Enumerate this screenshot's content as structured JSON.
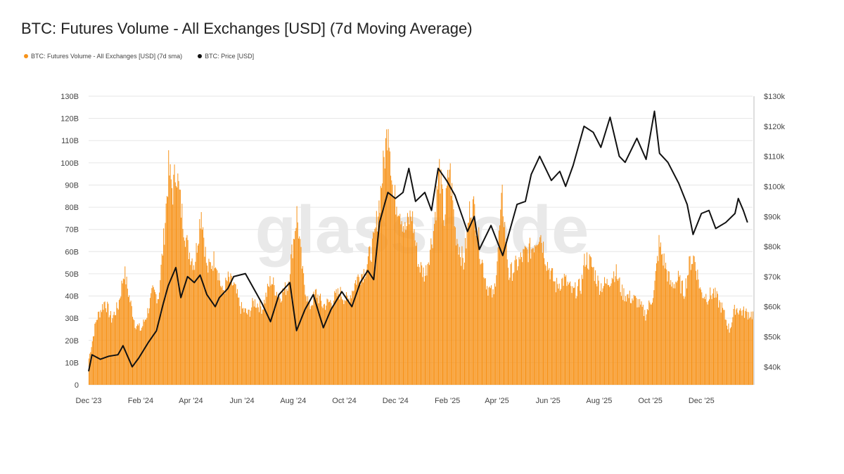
{
  "chart_data": {
    "type": "bar",
    "title": "BTC: Futures Volume - All Exchanges [USD] (7d Moving Average)",
    "watermark": "glassnode",
    "legend_placement": "top-left",
    "colors": {
      "volume": "#f7931a",
      "price": "#111111",
      "grid": "#e6e6e6"
    },
    "x_tick_labels": [
      "Dec '23",
      "Feb '24",
      "Apr '24",
      "Jun '24",
      "Aug '24",
      "Oct '24",
      "Dec '24",
      "Feb '25",
      "Apr '25",
      "Jun '25",
      "Aug '25",
      "Oct '25",
      "Dec '25"
    ],
    "x_range": [
      "2023-12-01",
      "2026-01-31"
    ],
    "y_left": {
      "ticks": [
        "0",
        "10B",
        "20B",
        "30B",
        "40B",
        "50B",
        "60B",
        "70B",
        "80B",
        "90B",
        "100B",
        "110B",
        "120B",
        "130B"
      ],
      "ylim": [
        0,
        130
      ]
    },
    "y_right": {
      "ticks": [
        "$40k",
        "$50k",
        "$60k",
        "$70k",
        "$80k",
        "$90k",
        "$100k",
        "$110k",
        "$120k",
        "$130k"
      ],
      "ylim": [
        34000,
        130000
      ]
    },
    "grid": true,
    "series": [
      {
        "name": "BTC: Futures Volume - All Exchanges [USD] (7d sma)",
        "kind": "bar",
        "unit": "B USD",
        "points": [
          [
            "2023-12-01",
            12
          ],
          [
            "2023-12-10",
            30
          ],
          [
            "2023-12-20",
            38
          ],
          [
            "2023-12-28",
            30
          ],
          [
            "2024-01-05",
            36
          ],
          [
            "2024-01-12",
            52
          ],
          [
            "2024-01-18",
            40
          ],
          [
            "2024-01-25",
            28
          ],
          [
            "2024-02-01",
            25
          ],
          [
            "2024-02-08",
            32
          ],
          [
            "2024-02-15",
            42
          ],
          [
            "2024-02-22",
            40
          ],
          [
            "2024-02-29",
            70
          ],
          [
            "2024-03-05",
            98
          ],
          [
            "2024-03-10",
            88
          ],
          [
            "2024-03-14",
            99
          ],
          [
            "2024-03-20",
            80
          ],
          [
            "2024-03-28",
            62
          ],
          [
            "2024-04-05",
            55
          ],
          [
            "2024-04-13",
            80
          ],
          [
            "2024-04-20",
            52
          ],
          [
            "2024-04-30",
            58
          ],
          [
            "2024-05-08",
            42
          ],
          [
            "2024-05-15",
            48
          ],
          [
            "2024-05-22",
            45
          ],
          [
            "2024-05-30",
            35
          ],
          [
            "2024-06-08",
            32
          ],
          [
            "2024-06-15",
            38
          ],
          [
            "2024-06-25",
            35
          ],
          [
            "2024-07-05",
            48
          ],
          [
            "2024-07-15",
            40
          ],
          [
            "2024-07-25",
            45
          ],
          [
            "2024-08-05",
            78
          ],
          [
            "2024-08-12",
            50
          ],
          [
            "2024-08-20",
            35
          ],
          [
            "2024-08-28",
            42
          ],
          [
            "2024-09-05",
            36
          ],
          [
            "2024-09-15",
            38
          ],
          [
            "2024-09-25",
            42
          ],
          [
            "2024-10-05",
            38
          ],
          [
            "2024-10-15",
            48
          ],
          [
            "2024-10-25",
            52
          ],
          [
            "2024-11-05",
            65
          ],
          [
            "2024-11-12",
            85
          ],
          [
            "2024-11-20",
            112
          ],
          [
            "2024-11-22",
            122
          ],
          [
            "2024-11-28",
            85
          ],
          [
            "2024-12-05",
            82
          ],
          [
            "2024-12-12",
            70
          ],
          [
            "2024-12-20",
            78
          ],
          [
            "2024-12-28",
            55
          ],
          [
            "2025-01-05",
            50
          ],
          [
            "2025-01-15",
            70
          ],
          [
            "2025-01-22",
            98
          ],
          [
            "2025-01-28",
            75
          ],
          [
            "2025-02-03",
            100
          ],
          [
            "2025-02-10",
            70
          ],
          [
            "2025-02-20",
            55
          ],
          [
            "2025-02-28",
            82
          ],
          [
            "2025-03-05",
            80
          ],
          [
            "2025-03-12",
            60
          ],
          [
            "2025-03-20",
            45
          ],
          [
            "2025-03-28",
            40
          ],
          [
            "2025-04-07",
            85
          ],
          [
            "2025-04-15",
            50
          ],
          [
            "2025-04-25",
            55
          ],
          [
            "2025-05-05",
            60
          ],
          [
            "2025-05-12",
            62
          ],
          [
            "2025-05-22",
            70
          ],
          [
            "2025-05-30",
            56
          ],
          [
            "2025-06-10",
            45
          ],
          [
            "2025-06-20",
            48
          ],
          [
            "2025-06-30",
            42
          ],
          [
            "2025-07-10",
            45
          ],
          [
            "2025-07-15",
            58
          ],
          [
            "2025-07-22",
            55
          ],
          [
            "2025-08-01",
            45
          ],
          [
            "2025-08-10",
            46
          ],
          [
            "2025-08-20",
            52
          ],
          [
            "2025-08-28",
            42
          ],
          [
            "2025-09-05",
            40
          ],
          [
            "2025-09-15",
            38
          ],
          [
            "2025-09-25",
            32
          ],
          [
            "2025-10-05",
            42
          ],
          [
            "2025-10-11",
            64
          ],
          [
            "2025-10-18",
            55
          ],
          [
            "2025-10-25",
            45
          ],
          [
            "2025-11-03",
            48
          ],
          [
            "2025-11-10",
            42
          ],
          [
            "2025-11-17",
            56
          ],
          [
            "2025-11-22",
            58
          ],
          [
            "2025-11-30",
            42
          ],
          [
            "2025-12-08",
            40
          ],
          [
            "2025-12-15",
            42
          ],
          [
            "2025-12-25",
            35
          ],
          [
            "2026-01-03",
            25
          ],
          [
            "2026-01-10",
            35
          ],
          [
            "2026-01-20",
            33
          ],
          [
            "2026-01-31",
            32
          ]
        ]
      },
      {
        "name": "BTC: Price [USD]",
        "kind": "line",
        "unit": "USD",
        "points": [
          [
            "2023-12-01",
            38500
          ],
          [
            "2023-12-05",
            44000
          ],
          [
            "2023-12-15",
            42500
          ],
          [
            "2023-12-25",
            43500
          ],
          [
            "2024-01-05",
            44000
          ],
          [
            "2024-01-11",
            47000
          ],
          [
            "2024-01-22",
            40000
          ],
          [
            "2024-01-30",
            43000
          ],
          [
            "2024-02-10",
            48000
          ],
          [
            "2024-02-20",
            52000
          ],
          [
            "2024-02-28",
            61000
          ],
          [
            "2024-03-05",
            67000
          ],
          [
            "2024-03-14",
            73000
          ],
          [
            "2024-03-20",
            63000
          ],
          [
            "2024-03-28",
            70000
          ],
          [
            "2024-04-05",
            68000
          ],
          [
            "2024-04-12",
            70500
          ],
          [
            "2024-04-20",
            64000
          ],
          [
            "2024-04-30",
            60000
          ],
          [
            "2024-05-05",
            63000
          ],
          [
            "2024-05-15",
            66000
          ],
          [
            "2024-05-22",
            70000
          ],
          [
            "2024-06-05",
            71000
          ],
          [
            "2024-06-15",
            66000
          ],
          [
            "2024-06-25",
            61000
          ],
          [
            "2024-07-05",
            55000
          ],
          [
            "2024-07-15",
            64000
          ],
          [
            "2024-07-28",
            68000
          ],
          [
            "2024-08-05",
            52000
          ],
          [
            "2024-08-15",
            59000
          ],
          [
            "2024-08-25",
            64000
          ],
          [
            "2024-09-06",
            53000
          ],
          [
            "2024-09-15",
            59000
          ],
          [
            "2024-09-28",
            65000
          ],
          [
            "2024-10-10",
            60000
          ],
          [
            "2024-10-20",
            68000
          ],
          [
            "2024-10-29",
            72000
          ],
          [
            "2024-11-05",
            69000
          ],
          [
            "2024-11-12",
            88000
          ],
          [
            "2024-11-22",
            98000
          ],
          [
            "2024-12-01",
            96000
          ],
          [
            "2024-12-10",
            98000
          ],
          [
            "2024-12-17",
            106000
          ],
          [
            "2024-12-25",
            95000
          ],
          [
            "2025-01-05",
            98000
          ],
          [
            "2025-01-13",
            92000
          ],
          [
            "2025-01-21",
            106000
          ],
          [
            "2025-01-31",
            102000
          ],
          [
            "2025-02-10",
            97000
          ],
          [
            "2025-02-25",
            85000
          ],
          [
            "2025-03-05",
            90000
          ],
          [
            "2025-03-11",
            79000
          ],
          [
            "2025-03-25",
            87000
          ],
          [
            "2025-04-08",
            77000
          ],
          [
            "2025-04-15",
            84000
          ],
          [
            "2025-04-25",
            94000
          ],
          [
            "2025-05-05",
            95000
          ],
          [
            "2025-05-12",
            104000
          ],
          [
            "2025-05-22",
            110000
          ],
          [
            "2025-06-05",
            102000
          ],
          [
            "2025-06-15",
            105000
          ],
          [
            "2025-06-22",
            100000
          ],
          [
            "2025-07-01",
            107000
          ],
          [
            "2025-07-14",
            120000
          ],
          [
            "2025-07-25",
            118000
          ],
          [
            "2025-08-03",
            113000
          ],
          [
            "2025-08-14",
            123000
          ],
          [
            "2025-08-25",
            110000
          ],
          [
            "2025-09-01",
            108000
          ],
          [
            "2025-09-15",
            116000
          ],
          [
            "2025-09-26",
            109000
          ],
          [
            "2025-10-06",
            125000
          ],
          [
            "2025-10-12",
            111000
          ],
          [
            "2025-10-22",
            108000
          ],
          [
            "2025-11-04",
            101000
          ],
          [
            "2025-11-14",
            94000
          ],
          [
            "2025-11-21",
            84000
          ],
          [
            "2025-12-01",
            91000
          ],
          [
            "2025-12-10",
            92000
          ],
          [
            "2025-12-18",
            86000
          ],
          [
            "2025-12-30",
            88000
          ],
          [
            "2026-01-10",
            91000
          ],
          [
            "2026-01-14",
            96000
          ],
          [
            "2026-01-20",
            92000
          ],
          [
            "2026-01-25",
            88000
          ]
        ]
      }
    ]
  }
}
